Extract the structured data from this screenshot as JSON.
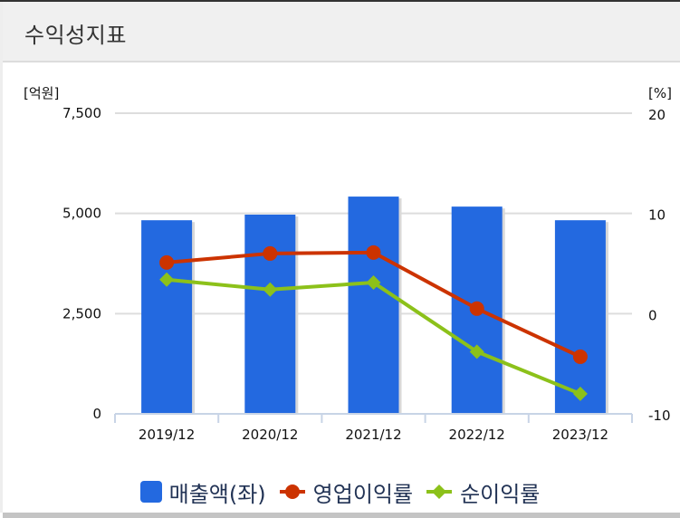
{
  "header": {
    "title": "수익성지표"
  },
  "axes": {
    "left_unit": "[억원]",
    "right_unit": "[%]",
    "left_ticks": [
      "7,500",
      "5,000",
      "2,500",
      "0"
    ],
    "right_ticks": [
      "20",
      "10",
      "0",
      "-10"
    ]
  },
  "legend": [
    {
      "label": "매출액(좌)",
      "color": "#2369e0",
      "marker": "square"
    },
    {
      "label": "영업이익률",
      "color": "#cc3300",
      "marker": "circle"
    },
    {
      "label": "순이익률",
      "color": "#8cc11a",
      "marker": "diamond"
    }
  ],
  "colors": {
    "bar": "#2369e0",
    "operating_margin": "#cc3300",
    "net_margin": "#8cc11a",
    "grid": "#dddddd",
    "axis": "#c8d4e6"
  },
  "chart_data": {
    "type": "bar",
    "title": "수익성지표",
    "categories": [
      "2019/12",
      "2020/12",
      "2021/12",
      "2022/12",
      "2023/12"
    ],
    "series": [
      {
        "name": "매출액(좌)",
        "type": "bar",
        "axis": "left",
        "values": [
          4830,
          4970,
          5420,
          5170,
          4830
        ]
      },
      {
        "name": "영업이익률",
        "type": "line",
        "axis": "right",
        "values": [
          5.1,
          6.0,
          6.1,
          0.5,
          -4.3
        ]
      },
      {
        "name": "순이익률",
        "type": "line",
        "axis": "right",
        "values": [
          3.4,
          2.4,
          3.1,
          -3.8,
          -8.0
        ]
      }
    ],
    "xlabel": "",
    "ylabel_left": "[억원]",
    "ylabel_right": "[%]",
    "ylim_left": [
      0,
      7500
    ],
    "ylim_right": [
      -10,
      20
    ],
    "grid": true,
    "legend_position": "bottom"
  }
}
